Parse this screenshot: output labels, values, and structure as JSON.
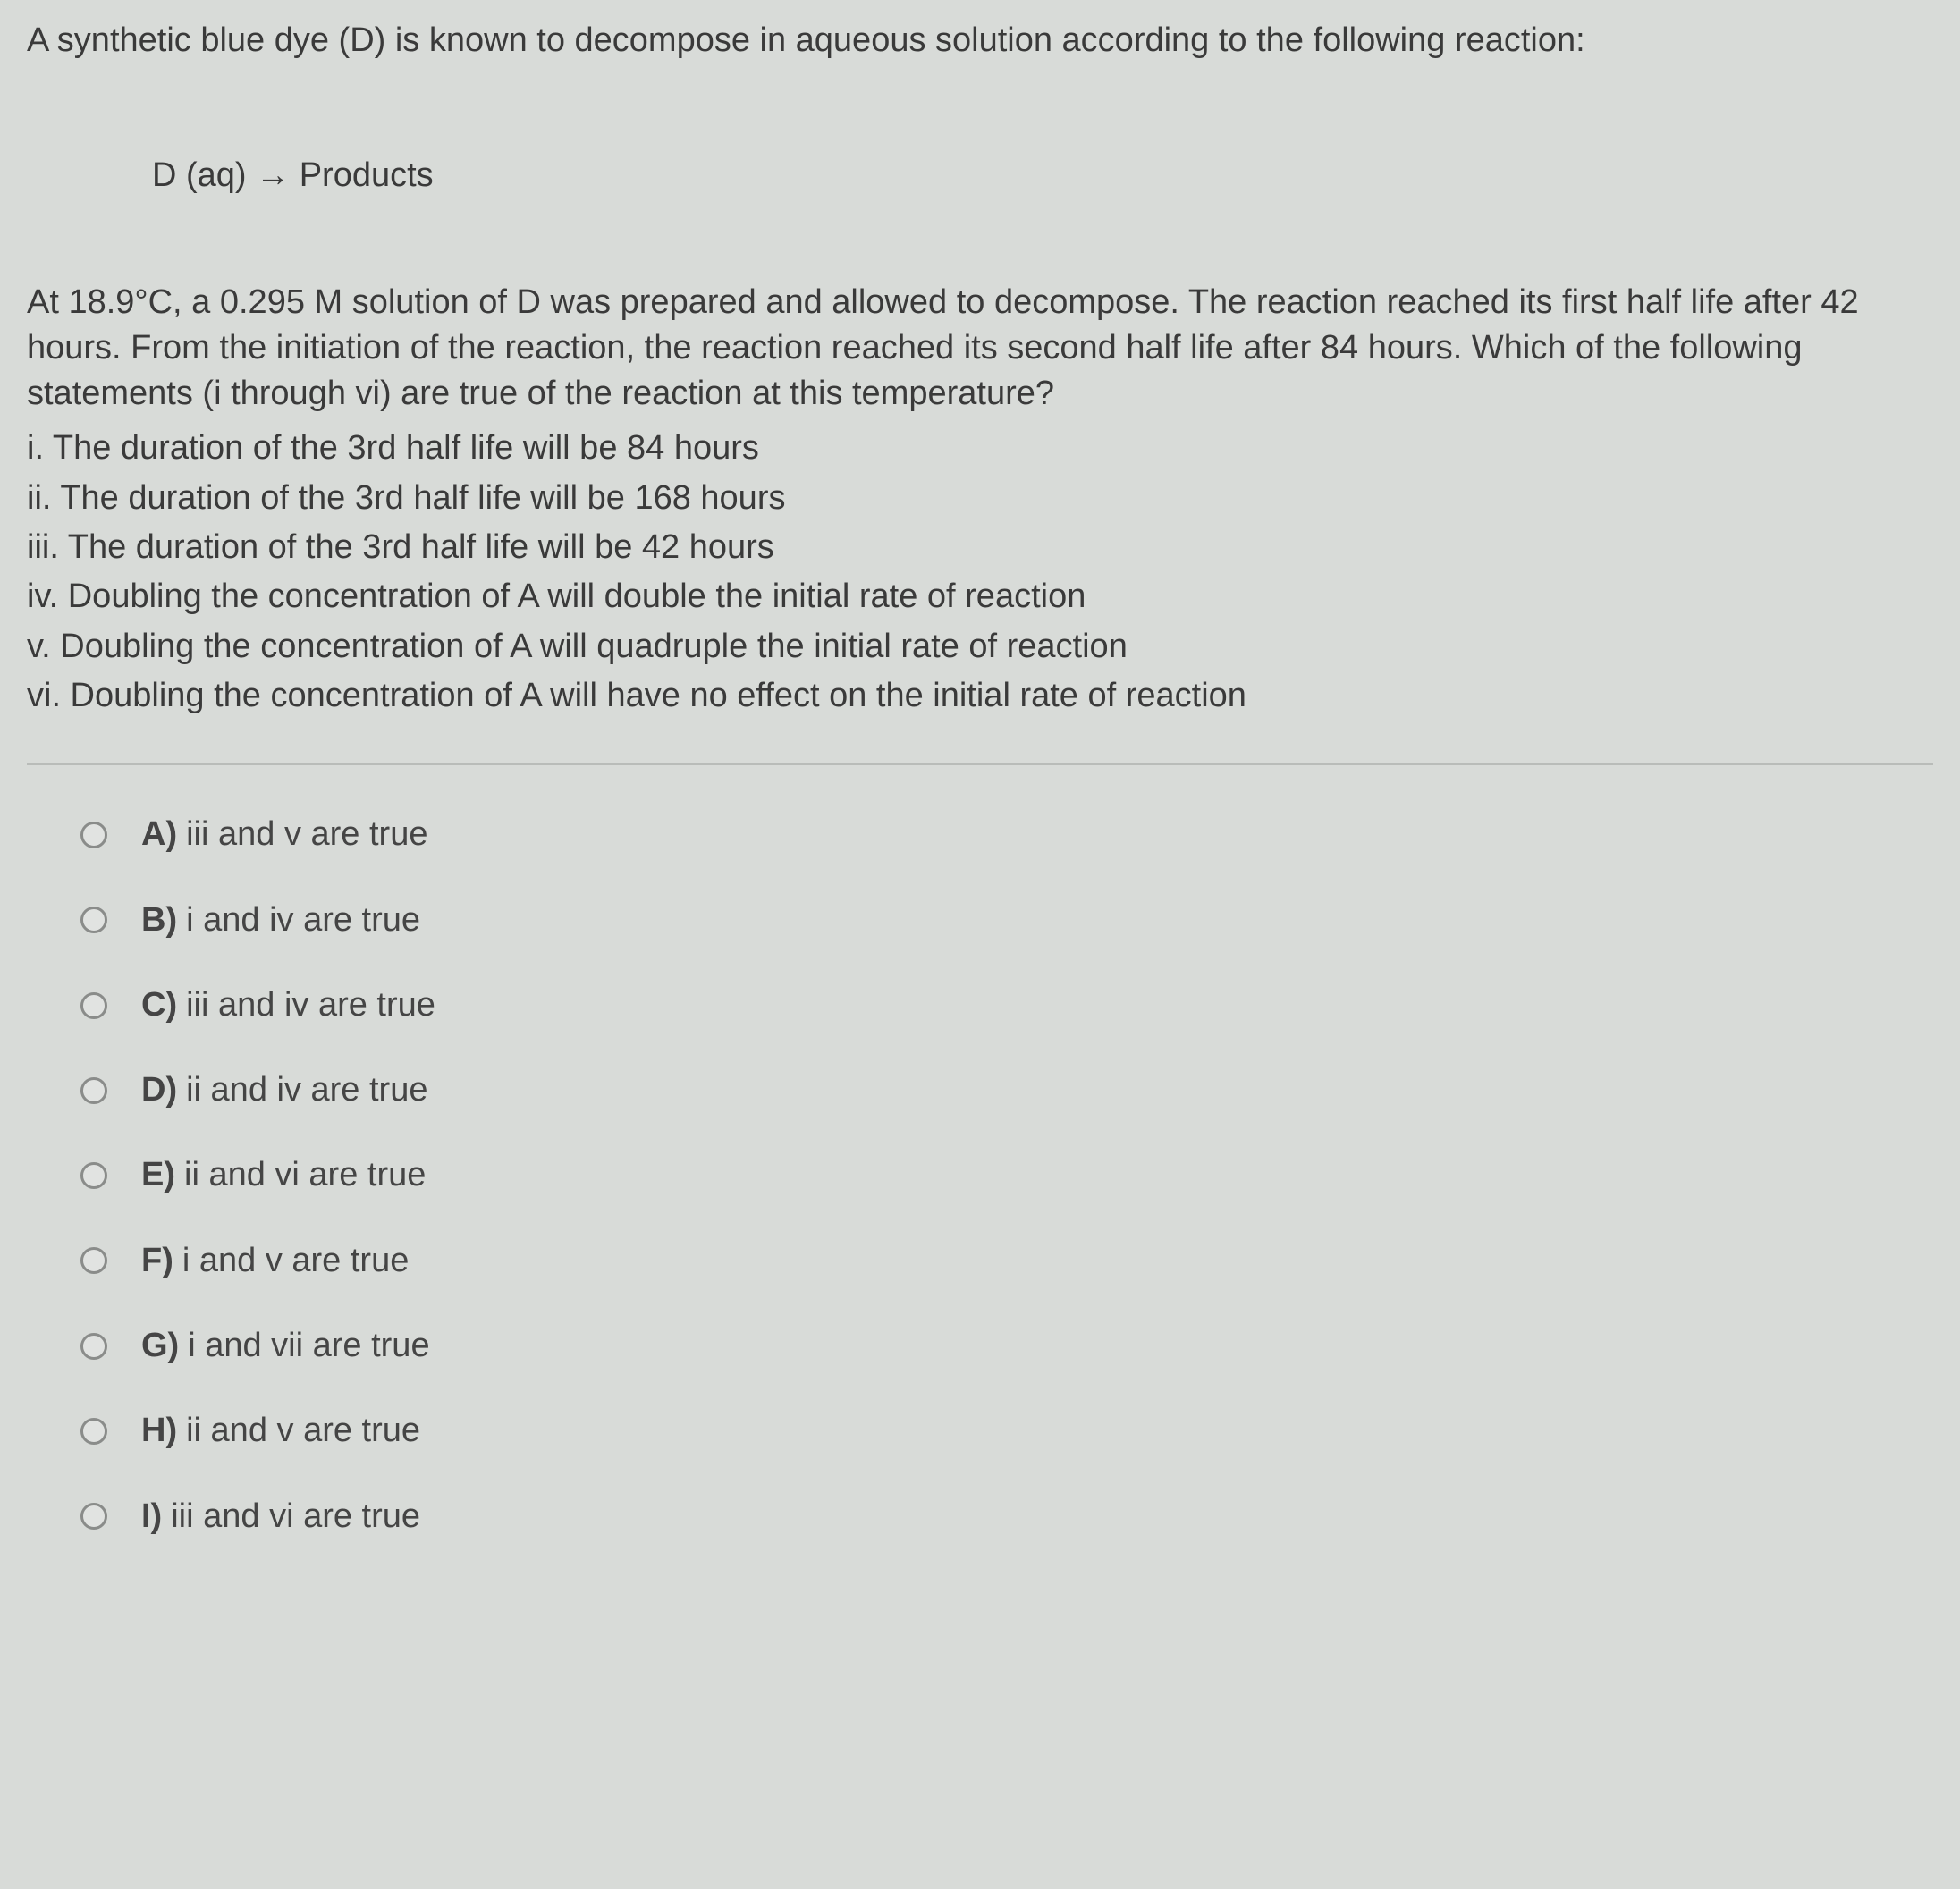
{
  "question": {
    "intro": "A synthetic blue dye (D) is known to decompose in aqueous solution according to the following reaction:",
    "reaction": "D (aq) → Products",
    "body": "At 18.9°C, a 0.295 M solution of D was prepared and allowed to decompose. The reaction reached its first half life after 42 hours. From the initiation of the reaction, the reaction reached its second half life after 84 hours. Which of the following statements (i through vi) are true of the reaction at this temperature?",
    "statements": [
      "i. The duration of the 3rd half life will be 84 hours",
      "ii. The duration of the 3rd half life will be 168 hours",
      "iii. The duration of the 3rd half life will be 42 hours",
      "iv. Doubling the concentration of A will double the initial rate of reaction",
      "v. Doubling the concentration of A will quadruple the initial rate of reaction",
      "vi. Doubling the concentration of A will have no effect on the initial rate of reaction"
    ]
  },
  "answers": [
    {
      "label": "A)",
      "text": "iii and v are true"
    },
    {
      "label": "B)",
      "text": "i and iv are true"
    },
    {
      "label": "C)",
      "text": "iii and iv are true"
    },
    {
      "label": "D)",
      "text": "ii and iv are true"
    },
    {
      "label": "E)",
      "text": "ii and vi are true"
    },
    {
      "label": "F)",
      "text": "i and v are true"
    },
    {
      "label": "G)",
      "text": "i and vii are true"
    },
    {
      "label": "H)",
      "text": "ii and v are true"
    },
    {
      "label": "I)",
      "text": "iii and vi are true"
    }
  ],
  "colors": {
    "background": "#d8dbd8",
    "text": "#3a3a3a",
    "divider": "#b9bcb9",
    "radio_border": "#8a8c8a"
  },
  "typography": {
    "body_fontsize": 38,
    "font_family": "Arial"
  }
}
